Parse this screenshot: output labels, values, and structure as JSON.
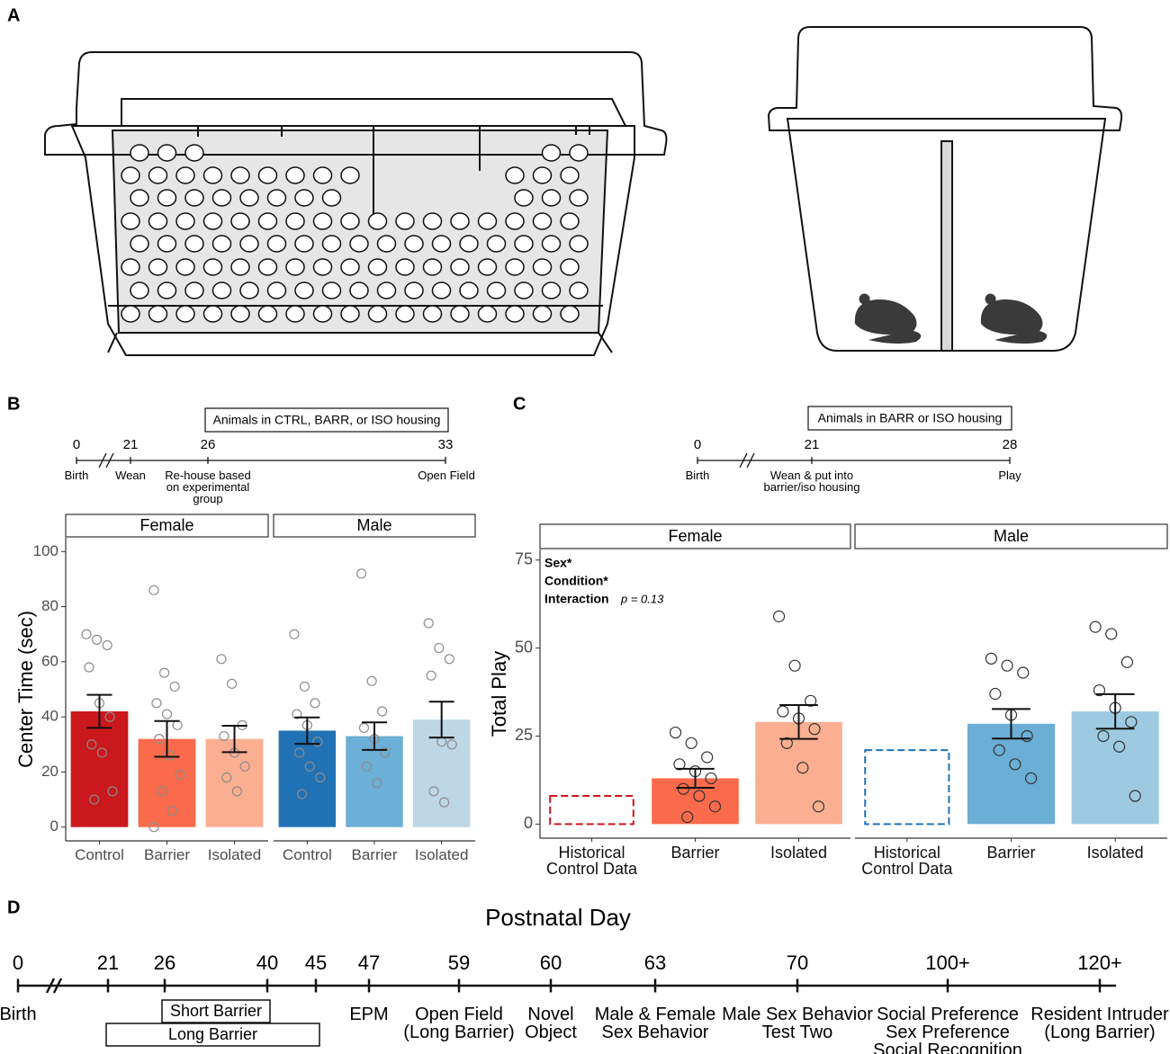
{
  "panel_labels": [
    "A",
    "B",
    "C",
    "D"
  ],
  "timeline_b": {
    "banner": "Animals in CTRL, BARR, or ISO housing",
    "days": [
      "0",
      "21",
      "26",
      "33"
    ],
    "labels": [
      "Birth",
      "Wean",
      "Re-house based\non experimental\ngroup",
      "Open Field"
    ]
  },
  "timeline_c": {
    "banner": "Animals in BARR or ISO housing",
    "days": [
      "0",
      "21",
      "28"
    ],
    "labels": [
      "Birth",
      "Wean & put into\nbarrier/iso housing",
      "Play"
    ]
  },
  "timeline_d": {
    "title": "Postnatal Day",
    "days": [
      "0",
      "21",
      "26",
      "40",
      "45",
      "47",
      "59",
      "60",
      "63",
      "70",
      "100+",
      "120+"
    ],
    "labels": [
      "Birth",
      "EPM",
      "Open Field\n(Long Barrier)",
      "Novel\nObject",
      "Male & Female\nSex Behavior",
      "Male Sex Behavior\nTest Two",
      "Social Preference\nSex Preference\nSocial Recognition",
      "Resident Intruder\n(Long Barrier)"
    ],
    "bars": [
      "Short Barrier",
      "Long Barrier"
    ]
  },
  "chart_data": [
    {
      "type": "bar",
      "ylabel": "Center Time (sec)",
      "ylim": [
        -5,
        105
      ],
      "yticks": [
        0,
        20,
        40,
        60,
        80,
        100
      ],
      "point_color": "#8c8c8c",
      "facets": [
        {
          "title": "Female",
          "categories": [
            "Control",
            "Barrier",
            "Isolated"
          ],
          "colors": [
            "#cb181d",
            "#fb6a4a",
            "#fcae91"
          ],
          "styles": [
            "solid",
            "solid",
            "solid"
          ],
          "values": [
            42,
            32,
            32
          ],
          "errors": [
            6,
            6.5,
            4.8
          ],
          "points": [
            [
              70,
              68,
              66,
              58,
              45,
              40,
              30,
              27,
              13,
              10
            ],
            [
              86,
              56,
              51,
              45,
              41,
              37,
              32,
              26,
              19,
              13,
              6,
              0
            ],
            [
              61,
              52,
              37,
              33,
              27,
              22,
              18,
              13
            ]
          ]
        },
        {
          "title": "Male",
          "categories": [
            "Control",
            "Barrier",
            "Isolated"
          ],
          "colors": [
            "#2171b5",
            "#6baed6",
            "#bdd7e7"
          ],
          "styles": [
            "solid",
            "solid",
            "solid"
          ],
          "values": [
            35,
            33,
            39
          ],
          "errors": [
            4.8,
            5,
            6.5
          ],
          "points": [
            [
              70,
              51,
              45,
              41,
              37,
              31,
              27,
              22,
              18,
              12
            ],
            [
              92,
              53,
              42,
              36,
              32,
              27,
              22,
              16
            ],
            [
              74,
              65,
              61,
              55,
              31,
              30,
              13,
              9
            ]
          ]
        }
      ]
    },
    {
      "type": "bar",
      "ylabel": "Total Play",
      "ylim": [
        -4,
        78
      ],
      "yticks": [
        0,
        25,
        50,
        75
      ],
      "point_color": "#333333",
      "annotations": [
        "Sex*",
        "Condition*",
        "Interaction"
      ],
      "p_value": "p = 0.13",
      "facets": [
        {
          "title": "Female",
          "categories": [
            "Historical Control Data",
            "Barrier",
            "Isolated"
          ],
          "colors": [
            "#cb181d",
            "#fb6a4a",
            "#fcae91"
          ],
          "styles": [
            "dashed",
            "solid",
            "solid"
          ],
          "values": [
            8,
            13,
            29
          ],
          "errors": [
            null,
            2.7,
            4.8
          ],
          "points": [
            [],
            [
              26,
              23,
              19,
              17,
              15,
              13,
              10,
              8,
              5,
              2
            ],
            [
              59,
              45,
              35,
              32,
              30,
              27,
              23,
              16,
              5
            ]
          ]
        },
        {
          "title": "Male",
          "categories": [
            "Historical Control Data",
            "Barrier",
            "Isolated"
          ],
          "colors": [
            "#2171b5",
            "#6baed6",
            "#9ecae1"
          ],
          "styles": [
            "dashed",
            "solid",
            "solid"
          ],
          "values": [
            21,
            28.5,
            32
          ],
          "errors": [
            null,
            4.2,
            4.9
          ],
          "points": [
            [],
            [
              47,
              45,
              43,
              37,
              31,
              25,
              21,
              17,
              13
            ],
            [
              56,
              54,
              46,
              38,
              33,
              29,
              25,
              22,
              8
            ]
          ]
        }
      ]
    }
  ]
}
